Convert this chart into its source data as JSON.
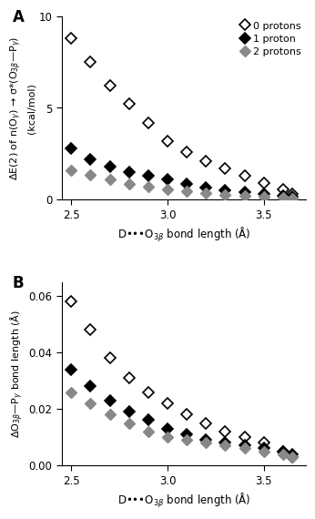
{
  "panel_A": {
    "x_0protons": [
      2.5,
      2.6,
      2.7,
      2.8,
      2.9,
      3.0,
      3.1,
      3.2,
      3.3,
      3.4,
      3.5,
      3.6,
      3.65
    ],
    "y_0protons": [
      8.8,
      7.5,
      6.2,
      5.2,
      4.2,
      3.2,
      2.6,
      2.1,
      1.7,
      1.3,
      0.9,
      0.55,
      0.3
    ],
    "x_1proton": [
      2.5,
      2.6,
      2.7,
      2.8,
      2.9,
      3.0,
      3.1,
      3.2,
      3.3,
      3.4,
      3.5,
      3.6,
      3.65
    ],
    "y_1proton": [
      2.8,
      2.2,
      1.8,
      1.5,
      1.3,
      1.1,
      0.85,
      0.65,
      0.5,
      0.4,
      0.3,
      0.2,
      0.15
    ],
    "x_2protons": [
      2.5,
      2.6,
      2.7,
      2.8,
      2.9,
      3.0,
      3.1,
      3.2,
      3.3,
      3.4,
      3.5,
      3.6,
      3.65
    ],
    "y_2protons": [
      1.6,
      1.35,
      1.1,
      0.85,
      0.7,
      0.55,
      0.45,
      0.35,
      0.25,
      0.2,
      0.15,
      0.1,
      0.07
    ],
    "xlabel": "D•••O$_{3\\beta}$ bond length (Å)",
    "ylabel_line1": "ΔE(2) of n(O$_{\\gamma}$) → σ*(O$_{3\\beta}$—P$_{\\gamma}$)",
    "ylabel_line2": "(kcal/mol)",
    "xlim": [
      2.45,
      3.72
    ],
    "ylim": [
      0,
      10
    ],
    "yticks": [
      0,
      5,
      10
    ],
    "xticks": [
      2.5,
      3.0,
      3.5
    ],
    "label_A": "A"
  },
  "panel_B": {
    "x_0protons": [
      2.5,
      2.6,
      2.7,
      2.8,
      2.9,
      3.0,
      3.1,
      3.2,
      3.3,
      3.4,
      3.5,
      3.6,
      3.65
    ],
    "y_0protons": [
      0.058,
      0.048,
      0.038,
      0.031,
      0.026,
      0.022,
      0.018,
      0.015,
      0.012,
      0.01,
      0.008,
      0.005,
      0.003
    ],
    "x_1proton": [
      2.5,
      2.6,
      2.7,
      2.8,
      2.9,
      3.0,
      3.1,
      3.2,
      3.3,
      3.4,
      3.5,
      3.6,
      3.65
    ],
    "y_1proton": [
      0.034,
      0.028,
      0.023,
      0.019,
      0.016,
      0.013,
      0.011,
      0.009,
      0.008,
      0.007,
      0.006,
      0.005,
      0.004
    ],
    "x_2protons": [
      2.5,
      2.6,
      2.7,
      2.8,
      2.9,
      3.0,
      3.1,
      3.2,
      3.3,
      3.4,
      3.5,
      3.6,
      3.65
    ],
    "y_2protons": [
      0.026,
      0.022,
      0.018,
      0.015,
      0.012,
      0.01,
      0.009,
      0.008,
      0.007,
      0.006,
      0.005,
      0.004,
      0.003
    ],
    "xlabel": "D•••O$_{3\\beta}$ bond length (Å)",
    "ylabel": "ΔO$_{3\\beta}$—P$_{\\gamma}$ bond length (Å)",
    "xlim": [
      2.45,
      3.72
    ],
    "ylim": [
      0.0,
      0.065
    ],
    "yticks": [
      0.0,
      0.02,
      0.04,
      0.06
    ],
    "xticks": [
      2.5,
      3.0,
      3.5
    ],
    "label_B": "B"
  },
  "colors": {
    "0protons": "#ffffff",
    "1proton": "#000000",
    "2protons": "#888888"
  },
  "legend_labels": [
    "0 protons",
    "1 proton",
    "2 protons"
  ],
  "marker": "D",
  "markersize": 6,
  "edge_width": 1.2
}
